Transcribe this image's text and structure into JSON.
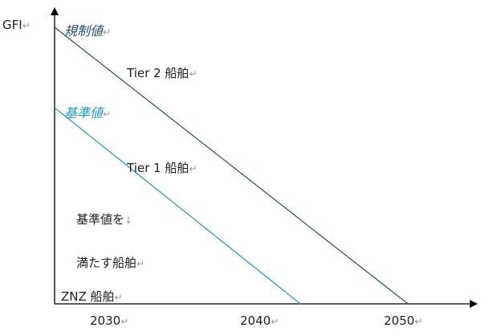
{
  "axes": {
    "y_label": "GFI",
    "x_ticks": [
      "2030",
      "2040",
      "2050"
    ]
  },
  "lines": {
    "regulation": {
      "label": "規制値",
      "color": "#1f4e79"
    },
    "baseline": {
      "label": "基準値",
      "color": "#1a9bd7"
    }
  },
  "regions": {
    "tier2": "Tier 2 船舶",
    "tier1": "Tier 1 船舶",
    "compliant_line1": "基準値を",
    "compliant_line2": "満たす船舶",
    "znz": "ZNZ 船舶"
  },
  "marks": {
    "paragraph": "↵",
    "line_break": "↓"
  },
  "colors": {
    "axis": "#000000",
    "text": "#222222",
    "edit_mark": "#9a9a9a"
  }
}
